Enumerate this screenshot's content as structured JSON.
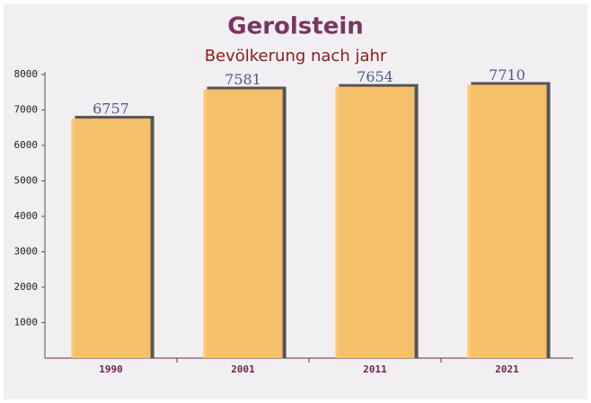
{
  "chart_data": {
    "type": "bar",
    "title": "Gerolstein",
    "subtitle": "Bevölkerung nach jahr",
    "categories": [
      "1990",
      "2001",
      "2011",
      "2021"
    ],
    "values": [
      6757,
      7581,
      7654,
      7710
    ],
    "color": "#fdc76c",
    "ylim": [
      0,
      8000
    ],
    "yticks": [
      1000,
      2000,
      3000,
      4000,
      5000,
      6000,
      7000,
      8000
    ],
    "grid": false
  }
}
